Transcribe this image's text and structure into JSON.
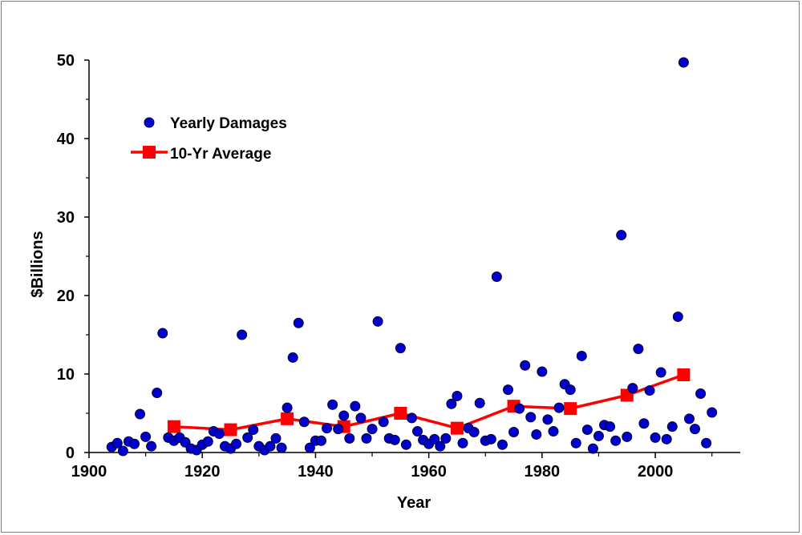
{
  "chart_data": {
    "type": "scatter",
    "title": "",
    "xlabel": "Year",
    "ylabel": "$Billions",
    "xlim": [
      1900,
      2015
    ],
    "ylim": [
      0,
      50
    ],
    "xticks": [
      "1900",
      "1920",
      "1940",
      "1960",
      "1980",
      "2000"
    ],
    "yticks": [
      "0",
      "10",
      "20",
      "30",
      "40",
      "50"
    ],
    "legend_position": "upper-left",
    "colors": {
      "scatter": "#0000cc",
      "scatter_stroke": "#000033",
      "line": "#ff0000",
      "marker": "#ff0000"
    },
    "series": [
      {
        "name": "Yearly Damages",
        "kind": "scatter",
        "points": [
          [
            1904,
            0.7
          ],
          [
            1905,
            1.2
          ],
          [
            1906,
            0.2
          ],
          [
            1907,
            1.4
          ],
          [
            1908,
            1.1
          ],
          [
            1909,
            4.9
          ],
          [
            1910,
            2.0
          ],
          [
            1911,
            0.8
          ],
          [
            1912,
            7.6
          ],
          [
            1913,
            15.2
          ],
          [
            1914,
            1.9
          ],
          [
            1915,
            1.5
          ],
          [
            1916,
            1.9
          ],
          [
            1917,
            1.3
          ],
          [
            1918,
            0.5
          ],
          [
            1919,
            0.3
          ],
          [
            1920,
            1.0
          ],
          [
            1921,
            1.4
          ],
          [
            1922,
            2.7
          ],
          [
            1923,
            2.4
          ],
          [
            1924,
            0.8
          ],
          [
            1925,
            0.5
          ],
          [
            1926,
            1.1
          ],
          [
            1927,
            15.0
          ],
          [
            1928,
            1.9
          ],
          [
            1929,
            2.9
          ],
          [
            1930,
            0.8
          ],
          [
            1931,
            0.3
          ],
          [
            1932,
            0.8
          ],
          [
            1933,
            1.8
          ],
          [
            1934,
            0.6
          ],
          [
            1935,
            5.7
          ],
          [
            1936,
            12.1
          ],
          [
            1937,
            16.5
          ],
          [
            1938,
            3.9
          ],
          [
            1939,
            0.6
          ],
          [
            1940,
            1.5
          ],
          [
            1941,
            1.5
          ],
          [
            1942,
            3.1
          ],
          [
            1943,
            6.1
          ],
          [
            1944,
            3.0
          ],
          [
            1945,
            4.7
          ],
          [
            1946,
            1.8
          ],
          [
            1947,
            5.9
          ],
          [
            1948,
            4.4
          ],
          [
            1949,
            1.8
          ],
          [
            1950,
            3.0
          ],
          [
            1951,
            16.7
          ],
          [
            1952,
            3.9
          ],
          [
            1953,
            1.8
          ],
          [
            1954,
            1.6
          ],
          [
            1955,
            13.3
          ],
          [
            1956,
            1.0
          ],
          [
            1957,
            4.4
          ],
          [
            1958,
            2.7
          ],
          [
            1959,
            1.6
          ],
          [
            1960,
            1.1
          ],
          [
            1961,
            1.7
          ],
          [
            1962,
            0.8
          ],
          [
            1963,
            1.8
          ],
          [
            1964,
            6.2
          ],
          [
            1965,
            7.2
          ],
          [
            1966,
            1.2
          ],
          [
            1967,
            3.1
          ],
          [
            1968,
            2.6
          ],
          [
            1969,
            6.3
          ],
          [
            1970,
            1.5
          ],
          [
            1971,
            1.7
          ],
          [
            1972,
            22.4
          ],
          [
            1973,
            1.0
          ],
          [
            1974,
            8.0
          ],
          [
            1975,
            2.6
          ],
          [
            1976,
            5.6
          ],
          [
            1977,
            11.1
          ],
          [
            1978,
            4.5
          ],
          [
            1979,
            2.3
          ],
          [
            1980,
            10.3
          ],
          [
            1981,
            4.2
          ],
          [
            1982,
            2.7
          ],
          [
            1983,
            5.7
          ],
          [
            1984,
            8.7
          ],
          [
            1985,
            8.0
          ],
          [
            1986,
            1.2
          ],
          [
            1987,
            12.3
          ],
          [
            1988,
            2.9
          ],
          [
            1989,
            0.5
          ],
          [
            1990,
            2.1
          ],
          [
            1991,
            3.5
          ],
          [
            1992,
            3.3
          ],
          [
            1993,
            1.5
          ],
          [
            1994,
            27.7
          ],
          [
            1995,
            2.0
          ],
          [
            1996,
            8.2
          ],
          [
            1997,
            13.2
          ],
          [
            1998,
            3.7
          ],
          [
            1999,
            7.9
          ],
          [
            2000,
            1.9
          ],
          [
            2001,
            10.2
          ],
          [
            2002,
            1.7
          ],
          [
            2003,
            3.3
          ],
          [
            2004,
            17.3
          ],
          [
            2005,
            49.7
          ],
          [
            2006,
            4.3
          ],
          [
            2007,
            3.0
          ],
          [
            2008,
            7.5
          ],
          [
            2009,
            1.2
          ],
          [
            2010,
            5.1
          ]
        ]
      },
      {
        "name": "10-Yr Average",
        "kind": "line",
        "points": [
          [
            1915,
            3.3
          ],
          [
            1925,
            2.9
          ],
          [
            1935,
            4.3
          ],
          [
            1945,
            3.3
          ],
          [
            1955,
            5.0
          ],
          [
            1965,
            3.1
          ],
          [
            1975,
            5.9
          ],
          [
            1985,
            5.6
          ],
          [
            1995,
            7.3
          ],
          [
            2005,
            9.9
          ]
        ]
      }
    ]
  }
}
